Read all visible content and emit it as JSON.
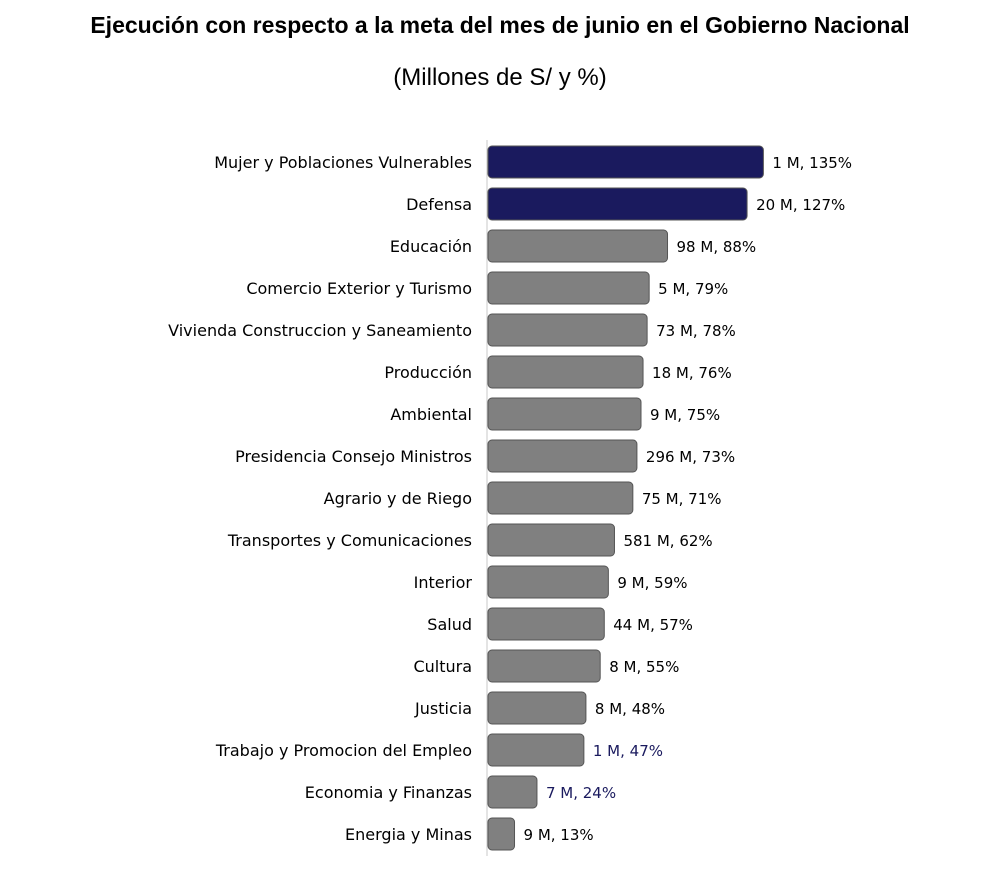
{
  "chart_data": {
    "type": "bar",
    "orientation": "horizontal",
    "title": "Ejecución con respecto a la meta del mes de junio en el Gobierno Nacional",
    "subtitle": "(Millones de S/ y %)",
    "xlabel": "",
    "ylabel": "",
    "grid": false,
    "legend": "none",
    "xlim": [
      0,
      135
    ],
    "categories": [
      "Mujer y Poblaciones Vulnerables",
      "Defensa",
      "Educación",
      "Comercio Exterior y Turismo",
      "Vivienda Construccion y Saneamiento",
      "Producción",
      "Ambiental",
      "Presidencia Consejo Ministros",
      "Agrario y de Riego",
      "Transportes y Comunicaciones",
      "Interior",
      "Salud",
      "Cultura",
      "Justicia",
      "Trabajo y Promocion del Empleo",
      "Economia y Finanzas",
      "Energia y Minas"
    ],
    "values": [
      135,
      127,
      88,
      79,
      78,
      76,
      75,
      73,
      71,
      62,
      59,
      57,
      55,
      48,
      47,
      24,
      13
    ],
    "amounts_millions": [
      1,
      20,
      98,
      5,
      73,
      18,
      9,
      296,
      75,
      581,
      9,
      44,
      8,
      8,
      1,
      7,
      9
    ],
    "data_labels": [
      "1 M, 135%",
      "20 M, 127%",
      "98 M, 88%",
      "5 M, 79%",
      "73 M, 78%",
      "18 M, 76%",
      "9 M, 75%",
      "296 M, 73%",
      "75 M, 71%",
      "581 M, 62%",
      "9 M, 59%",
      "44 M, 57%",
      "8 M, 55%",
      "8 M, 48%",
      "1 M, 47%",
      "7 M, 24%",
      "9 M, 13%"
    ],
    "bar_colors": [
      "#1a1a5e",
      "#1a1a5e",
      "#808080",
      "#808080",
      "#808080",
      "#808080",
      "#808080",
      "#808080",
      "#808080",
      "#808080",
      "#808080",
      "#808080",
      "#808080",
      "#808080",
      "#808080",
      "#808080",
      "#808080"
    ],
    "label_colors": [
      "#000000",
      "#000000",
      "#000000",
      "#000000",
      "#000000",
      "#000000",
      "#000000",
      "#000000",
      "#000000",
      "#000000",
      "#000000",
      "#000000",
      "#000000",
      "#000000",
      "#1a1a5e",
      "#1a1a5e",
      "#000000"
    ]
  }
}
